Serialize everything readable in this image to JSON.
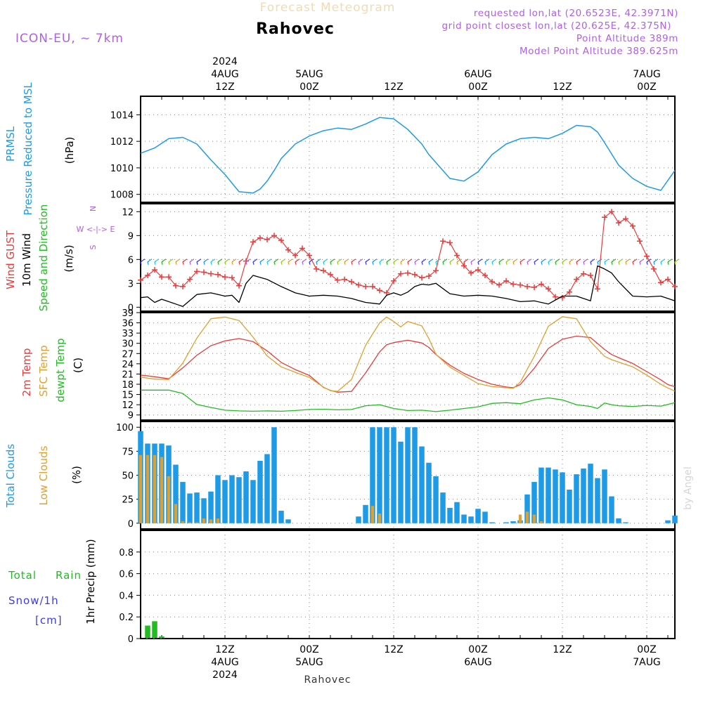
{
  "header": {
    "title_faded": "Forecast Meteogram",
    "location": "Rahovec",
    "model": "ICON-EU, ~ 7km",
    "requested": "requested lon,lat (20.6523E, 42.3971N)",
    "grid_point": "grid point closest lon,lat (20.625E, 42.375N)",
    "point_altitude": "Point Altitude 389m",
    "model_altitude": "Model Point Altitude 389.625m",
    "footer_location": "Rahovec",
    "watermark": "by Angel"
  },
  "colors": {
    "pressure": "#1e9be6",
    "gust": "#e83c3c",
    "wind10m": "#000000",
    "sfc_temp": "#e0a030",
    "dewpoint": "#22bb22",
    "clouds_total": "#1e9be6",
    "clouds_low": "#e0a030",
    "rain": "#22bb22",
    "snow": "#3c3ce8",
    "meta": "#b060e0",
    "wind_dir_label": "#b060e0"
  },
  "time_axis": {
    "top_labels": [
      {
        "h": 12,
        "lines": [
          "2024",
          "4AUG",
          "12Z"
        ]
      },
      {
        "h": 24,
        "lines": [
          "5AUG",
          "00Z"
        ]
      },
      {
        "h": 36,
        "lines": [
          "12Z"
        ]
      },
      {
        "h": 48,
        "lines": [
          "6AUG",
          "00Z"
        ]
      },
      {
        "h": 60,
        "lines": [
          "12Z"
        ]
      },
      {
        "h": 72,
        "lines": [
          "7AUG",
          "00Z"
        ]
      }
    ],
    "bottom_labels": [
      {
        "h": 12,
        "lines": [
          "12Z",
          "4AUG",
          "2024"
        ]
      },
      {
        "h": 24,
        "lines": [
          "00Z",
          "5AUG"
        ]
      },
      {
        "h": 36,
        "lines": [
          "12Z"
        ]
      },
      {
        "h": 48,
        "lines": [
          "00Z",
          "6AUG"
        ]
      },
      {
        "h": 60,
        "lines": [
          "12Z"
        ]
      },
      {
        "h": 72,
        "lines": [
          "00Z",
          "7AUG"
        ]
      }
    ]
  },
  "panel_labels": {
    "pressure": [
      "PRMSL",
      "Pressure Reduced to MSL",
      "(hPa)"
    ],
    "wind": [
      "Wind GUST",
      "10m Wind",
      "Speed and Direction",
      "(m/s)"
    ],
    "compass": [
      "N",
      "W <-|-> E",
      "S"
    ],
    "temp": [
      "2m Temp",
      "SFC Temp",
      "dewpt Temp",
      "(C)"
    ],
    "clouds": [
      "Total Clouds",
      "Low Clouds",
      "(%)"
    ],
    "precip": [
      "Total",
      "Rain",
      "Snow/1h",
      "[cm]",
      "1hr Precip (mm)"
    ]
  },
  "chart_data": [
    {
      "type": "line",
      "panel": "pressure",
      "ylabel": "(hPa)",
      "x_unit": "hours from 4AUG 00Z",
      "ylim": [
        1007.4,
        1015.4
      ],
      "yticks": [
        1008,
        1010,
        1012,
        1014
      ],
      "grid": true,
      "series": [
        {
          "name": "PRMSL",
          "x": [
            0,
            2,
            4,
            6,
            8,
            10,
            12,
            14,
            16,
            17,
            18,
            19,
            20,
            22,
            24,
            25,
            26,
            28,
            30,
            32,
            34,
            36,
            38,
            40,
            41,
            42,
            44,
            46,
            48,
            50,
            52,
            54,
            56,
            58,
            60,
            62,
            64,
            65,
            66,
            68,
            70,
            72,
            74,
            76
          ],
          "values": [
            1011.1,
            1011.5,
            1012.2,
            1012.3,
            1011.8,
            1010.6,
            1009.5,
            1008.2,
            1008.1,
            1008.4,
            1009.0,
            1009.8,
            1010.7,
            1011.8,
            1012.4,
            1012.6,
            1012.8,
            1013.0,
            1012.9,
            1013.3,
            1013.8,
            1013.7,
            1012.9,
            1011.8,
            1011.0,
            1010.4,
            1009.2,
            1009.0,
            1009.7,
            1011.0,
            1011.8,
            1012.2,
            1012.3,
            1012.2,
            1012.6,
            1013.2,
            1013.1,
            1012.7,
            1011.9,
            1010.2,
            1009.2,
            1008.6,
            1008.3,
            1009.8
          ]
        }
      ]
    },
    {
      "type": "line",
      "panel": "wind",
      "ylabel": "(m/s)",
      "ylim": [
        -0.5,
        13
      ],
      "yticks": [
        0,
        3,
        6,
        9,
        12
      ],
      "grid": true,
      "series": [
        {
          "name": "Wind GUST",
          "x": [
            0,
            1,
            2,
            3,
            4,
            5,
            6,
            7,
            8,
            9,
            10,
            11,
            12,
            13,
            14,
            15,
            16,
            17,
            18,
            19,
            20,
            21,
            22,
            23,
            24,
            25,
            26,
            27,
            28,
            29,
            30,
            31,
            32,
            33,
            34,
            35,
            36,
            37,
            38,
            39,
            40,
            41,
            42,
            43,
            44,
            45,
            46,
            47,
            48,
            49,
            50,
            51,
            52,
            53,
            54,
            55,
            56,
            57,
            58,
            59,
            60,
            61,
            62,
            63,
            64,
            65,
            66,
            67,
            68,
            69,
            70,
            71,
            72,
            73,
            74,
            75,
            76
          ],
          "values": [
            3.4,
            4.0,
            4.7,
            3.8,
            3.8,
            2.7,
            2.6,
            3.5,
            4.5,
            4.4,
            4.2,
            4.1,
            3.8,
            3.7,
            2.7,
            5.8,
            8.2,
            8.7,
            8.5,
            9.0,
            8.4,
            7.2,
            6.5,
            7.4,
            6.5,
            4.8,
            4.6,
            4.1,
            3.4,
            3.5,
            3.2,
            2.8,
            2.6,
            2.6,
            2.1,
            1.8,
            3.3,
            4.2,
            4.3,
            4.1,
            3.7,
            3.9,
            4.6,
            8.3,
            8.1,
            6.5,
            5.2,
            4.3,
            4.7,
            4.0,
            3.2,
            2.8,
            3.3,
            2.9,
            2.8,
            2.6,
            2.5,
            2.9,
            2.3,
            1.3,
            1.2,
            1.9,
            3.5,
            4.2,
            4.0,
            2.3,
            11.3,
            12.0,
            10.6,
            11.1,
            10.2,
            8.3,
            6.4,
            4.8,
            3.1,
            3.5,
            2.6
          ]
        },
        {
          "name": "10m Wind",
          "x": [
            0,
            1,
            2,
            3,
            4,
            6,
            8,
            10,
            12,
            13,
            14,
            15,
            16,
            18,
            20,
            22,
            24,
            26,
            28,
            30,
            32,
            34,
            35,
            36,
            37,
            38,
            39,
            40,
            41,
            42,
            44,
            46,
            48,
            50,
            52,
            54,
            56,
            58,
            60,
            62,
            64,
            65,
            66,
            67,
            68,
            70,
            72,
            74,
            76
          ],
          "values": [
            1.2,
            1.3,
            0.6,
            1.0,
            0.7,
            0.1,
            1.6,
            1.8,
            1.4,
            1.5,
            0.6,
            3.0,
            4.0,
            3.5,
            2.6,
            1.8,
            1.4,
            1.5,
            1.4,
            1.1,
            0.6,
            0.4,
            1.5,
            1.8,
            1.5,
            1.9,
            2.6,
            2.9,
            2.8,
            3.0,
            1.7,
            1.4,
            1.5,
            1.4,
            1.1,
            0.7,
            0.8,
            0.4,
            1.4,
            1.4,
            0.8,
            5.2,
            4.8,
            4.3,
            3.2,
            1.4,
            1.3,
            1.4,
            0.8
          ]
        }
      ]
    },
    {
      "type": "line",
      "panel": "temp",
      "ylabel": "(C)",
      "ylim": [
        7.5,
        39
      ],
      "yticks": [
        9,
        12,
        15,
        18,
        21,
        24,
        27,
        30,
        33,
        36,
        39
      ],
      "grid": true,
      "series": [
        {
          "name": "2m Temp",
          "x": [
            0,
            2,
            4,
            6,
            8,
            10,
            12,
            14,
            16,
            18,
            20,
            22,
            24,
            26,
            27,
            28,
            30,
            32,
            34,
            35,
            36,
            38,
            40,
            41,
            42,
            44,
            46,
            48,
            50,
            52,
            53,
            54,
            56,
            58,
            60,
            62,
            64,
            66,
            67,
            68,
            70,
            72,
            74,
            75,
            76
          ],
          "values": [
            20.7,
            20.2,
            19.6,
            22.8,
            26.5,
            29.3,
            30.7,
            31.4,
            30.5,
            27.8,
            24.4,
            22.3,
            20.6,
            17.1,
            16.2,
            15.7,
            15.9,
            21.3,
            27.5,
            29.6,
            30.2,
            30.9,
            30.1,
            28.8,
            26.7,
            23.6,
            21.2,
            19.4,
            18.0,
            17.2,
            17.0,
            17.9,
            22.7,
            28.5,
            31.2,
            32.1,
            31.7,
            28.2,
            26.7,
            25.8,
            24.1,
            21.7,
            19.3,
            17.9,
            17.3
          ]
        },
        {
          "name": "SFC Temp",
          "x": [
            0,
            2,
            4,
            6,
            8,
            10,
            12,
            14,
            16,
            18,
            20,
            22,
            24,
            26,
            27,
            28,
            30,
            32,
            34,
            35,
            36,
            37,
            38,
            40,
            41,
            42,
            44,
            46,
            48,
            50,
            52,
            53,
            54,
            56,
            58,
            60,
            62,
            64,
            66,
            67,
            68,
            70,
            72,
            74,
            75,
            76
          ],
          "values": [
            20.1,
            19.5,
            19.4,
            24.2,
            31.5,
            37.2,
            37.7,
            36.7,
            31.8,
            26.3,
            23.1,
            21.5,
            20.0,
            17.2,
            16.1,
            15.9,
            19.4,
            29.4,
            36.0,
            37.7,
            36.4,
            34.8,
            36.4,
            35.1,
            31.4,
            26.8,
            23.0,
            20.6,
            18.2,
            17.3,
            17.0,
            16.8,
            18.6,
            26.2,
            35.0,
            37.8,
            37.2,
            30.5,
            26.2,
            25.2,
            24.5,
            23.1,
            20.7,
            18.0,
            16.9,
            16.0
          ]
        },
        {
          "name": "dewpt Temp",
          "x": [
            0,
            2,
            4,
            6,
            8,
            10,
            12,
            14,
            16,
            18,
            20,
            22,
            24,
            26,
            28,
            30,
            32,
            34,
            36,
            38,
            40,
            42,
            44,
            46,
            48,
            50,
            52,
            54,
            56,
            58,
            60,
            62,
            64,
            65,
            66,
            67,
            68,
            70,
            72,
            74,
            76
          ],
          "values": [
            16.3,
            16.3,
            16.3,
            15.3,
            12.1,
            11.2,
            10.4,
            10.2,
            10.1,
            10.2,
            10.1,
            10.3,
            10.6,
            10.7,
            10.5,
            10.6,
            11.7,
            12.0,
            10.9,
            10.3,
            10.4,
            10.0,
            10.4,
            10.9,
            11.4,
            12.4,
            12.6,
            12.3,
            13.4,
            14.0,
            13.4,
            12.0,
            11.5,
            10.9,
            12.5,
            12.0,
            11.7,
            11.5,
            11.8,
            11.6,
            12.6
          ]
        }
      ]
    },
    {
      "type": "bar",
      "panel": "clouds",
      "ylabel": "(%)",
      "ylim": [
        -6,
        106
      ],
      "yticks": [
        0,
        25,
        50,
        75,
        100
      ],
      "grid": true,
      "x": [
        0,
        1,
        2,
        3,
        4,
        5,
        6,
        7,
        8,
        9,
        10,
        11,
        12,
        13,
        14,
        15,
        16,
        17,
        18,
        19,
        20,
        21,
        22,
        23,
        24,
        25,
        26,
        27,
        28,
        29,
        30,
        31,
        32,
        33,
        34,
        35,
        36,
        37,
        38,
        39,
        40,
        41,
        42,
        43,
        44,
        45,
        46,
        47,
        48,
        49,
        50,
        51,
        52,
        53,
        54,
        55,
        56,
        57,
        58,
        59,
        60,
        61,
        62,
        63,
        64,
        65,
        66,
        67,
        68,
        69,
        70,
        71,
        72,
        73,
        74,
        75,
        76
      ],
      "series": [
        {
          "name": "Total Clouds",
          "values": [
            96,
            83,
            83,
            83,
            81,
            61,
            43,
            31,
            32,
            26,
            33,
            50,
            45,
            50,
            48,
            54,
            45,
            65,
            72,
            100,
            13,
            4,
            0,
            0,
            0,
            0,
            0,
            0,
            0,
            0,
            0,
            7,
            19,
            100,
            100,
            100,
            100,
            85,
            100,
            100,
            80,
            63,
            49,
            32,
            16,
            22,
            9,
            7,
            15,
            12,
            1,
            0,
            1,
            2,
            3,
            30,
            43,
            58,
            58,
            56,
            53,
            35,
            51,
            57,
            62,
            47,
            56,
            28,
            5,
            1,
            0,
            0,
            0,
            0,
            0,
            3,
            8
          ]
        },
        {
          "name": "Low Clouds",
          "values": [
            71,
            71,
            71,
            69,
            49,
            20,
            2,
            1,
            1,
            5,
            4,
            5,
            0,
            0,
            0,
            0,
            0,
            0,
            0,
            0,
            0,
            0,
            0,
            0,
            0,
            0,
            0,
            0,
            0,
            0,
            0,
            0,
            0,
            18,
            10,
            0,
            0,
            0,
            0,
            0,
            0,
            0,
            0,
            0,
            0,
            0,
            0,
            0,
            0,
            0,
            0,
            0,
            0,
            0,
            9,
            12,
            9,
            2,
            0,
            0,
            0,
            0,
            0,
            0,
            0,
            0,
            0,
            0,
            0,
            0,
            0,
            0,
            0,
            0,
            0,
            0,
            0
          ]
        }
      ]
    },
    {
      "type": "bar",
      "panel": "precip",
      "ylabel": "1hr Precip (mm)",
      "ylim": [
        0,
        1.0
      ],
      "yticks": [
        0,
        0.2,
        0.4,
        0.6,
        0.8
      ],
      "grid": true,
      "x": [
        1,
        2,
        3
      ],
      "series": [
        {
          "name": "Rain",
          "values": [
            0.12,
            0.16,
            0.02
          ]
        }
      ]
    }
  ]
}
